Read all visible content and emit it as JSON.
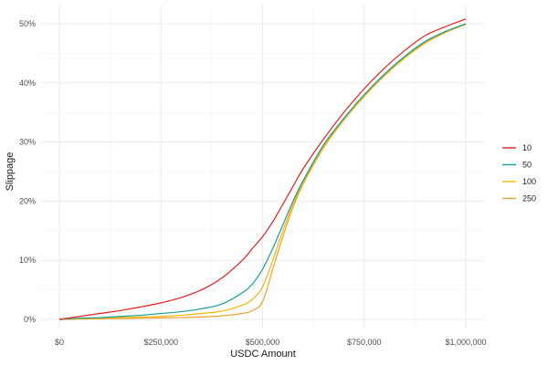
{
  "chart_data": {
    "type": "line",
    "xlabel": "USDC Amount",
    "ylabel": "Slippage",
    "xlim": [
      0,
      1000000
    ],
    "ylim": [
      0,
      0.5
    ],
    "x_ticks": [
      {
        "value": 0,
        "label": "$0"
      },
      {
        "value": 250000,
        "label": "$250,000"
      },
      {
        "value": 500000,
        "label": "$500,000"
      },
      {
        "value": 750000,
        "label": "$750,000"
      },
      {
        "value": 1000000,
        "label": "$1,000,000"
      }
    ],
    "y_ticks": [
      {
        "value": 0,
        "label": "0%"
      },
      {
        "value": 0.1,
        "label": "10%"
      },
      {
        "value": 0.2,
        "label": "20%"
      },
      {
        "value": 0.3,
        "label": "30%"
      },
      {
        "value": 0.4,
        "label": "40%"
      },
      {
        "value": 0.5,
        "label": "50%"
      }
    ],
    "grid": true,
    "legend_position": "right",
    "x": [
      0,
      50000,
      100000,
      150000,
      200000,
      250000,
      300000,
      350000,
      400000,
      450000,
      475000,
      500000,
      525000,
      550000,
      575000,
      600000,
      650000,
      700000,
      750000,
      800000,
      850000,
      900000,
      950000,
      1000000
    ],
    "series": [
      {
        "name": "10",
        "color": "#e8211f",
        "values": [
          0.0,
          0.005,
          0.01,
          0.015,
          0.021,
          0.028,
          0.037,
          0.05,
          0.07,
          0.1,
          0.12,
          0.14,
          0.165,
          0.195,
          0.225,
          0.255,
          0.305,
          0.35,
          0.39,
          0.425,
          0.455,
          0.48,
          0.495,
          0.508
        ]
      },
      {
        "name": "50",
        "color": "#1a9e98",
        "values": [
          0.0,
          0.002,
          0.003,
          0.005,
          0.007,
          0.01,
          0.013,
          0.018,
          0.026,
          0.045,
          0.06,
          0.085,
          0.12,
          0.16,
          0.2,
          0.235,
          0.295,
          0.34,
          0.38,
          0.415,
          0.445,
          0.47,
          0.487,
          0.5
        ]
      },
      {
        "name": "100",
        "color": "#f2b705",
        "values": [
          0.0,
          0.001,
          0.002,
          0.003,
          0.004,
          0.005,
          0.007,
          0.01,
          0.014,
          0.024,
          0.034,
          0.055,
          0.1,
          0.15,
          0.195,
          0.232,
          0.292,
          0.338,
          0.378,
          0.413,
          0.443,
          0.468,
          0.486,
          0.499
        ]
      },
      {
        "name": "250",
        "color": "#f0a030",
        "values": [
          0.0,
          0.0005,
          0.001,
          0.0015,
          0.002,
          0.0025,
          0.003,
          0.004,
          0.006,
          0.01,
          0.015,
          0.03,
          0.085,
          0.14,
          0.19,
          0.229,
          0.29,
          0.337,
          0.377,
          0.412,
          0.442,
          0.467,
          0.485,
          0.499
        ]
      }
    ]
  }
}
